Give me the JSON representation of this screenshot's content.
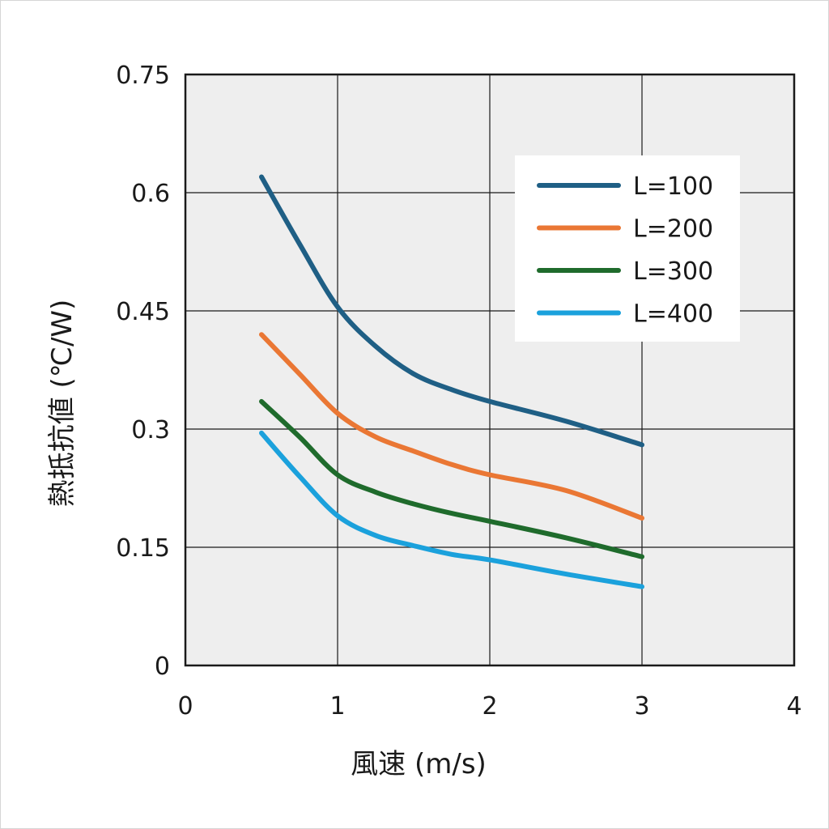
{
  "chart_data": {
    "type": "line",
    "xlabel": "風速 (m/s)",
    "ylabel": "熱抵抗値 (℃/W)",
    "xlim": [
      0,
      4
    ],
    "ylim": [
      0,
      0.75
    ],
    "x_ticks": [
      0,
      1,
      2,
      3,
      4
    ],
    "x_tick_labels": [
      "0",
      "1",
      "2",
      "3",
      "4"
    ],
    "y_ticks": [
      0,
      0.15,
      0.3,
      0.45,
      0.6,
      0.75
    ],
    "y_tick_labels": [
      "0",
      "0.15",
      "0.3",
      "0.45",
      "0.6",
      "0.75"
    ],
    "grid": true,
    "legend_position": "top-right",
    "series": [
      {
        "name": "L=100",
        "color": "#1f5f85",
        "x": [
          0.5,
          0.75,
          1.0,
          1.25,
          1.5,
          1.75,
          2.0,
          2.5,
          3.0
        ],
        "y": [
          0.62,
          0.535,
          0.455,
          0.405,
          0.37,
          0.35,
          0.335,
          0.31,
          0.28
        ]
      },
      {
        "name": "L=200",
        "color": "#ea7734",
        "x": [
          0.5,
          0.75,
          1.0,
          1.25,
          1.5,
          1.75,
          2.0,
          2.5,
          3.0
        ],
        "y": [
          0.42,
          0.37,
          0.32,
          0.29,
          0.272,
          0.255,
          0.242,
          0.222,
          0.187
        ]
      },
      {
        "name": "L=300",
        "color": "#1f6b2c",
        "x": [
          0.5,
          0.75,
          1.0,
          1.25,
          1.5,
          1.75,
          2.0,
          2.5,
          3.0
        ],
        "y": [
          0.335,
          0.29,
          0.242,
          0.22,
          0.205,
          0.193,
          0.183,
          0.162,
          0.138
        ]
      },
      {
        "name": "L=400",
        "color": "#1ba1dc",
        "x": [
          0.5,
          0.75,
          1.0,
          1.25,
          1.5,
          1.75,
          2.0,
          2.5,
          3.0
        ],
        "y": [
          0.295,
          0.24,
          0.19,
          0.165,
          0.152,
          0.141,
          0.134,
          0.116,
          0.1
        ]
      }
    ]
  }
}
